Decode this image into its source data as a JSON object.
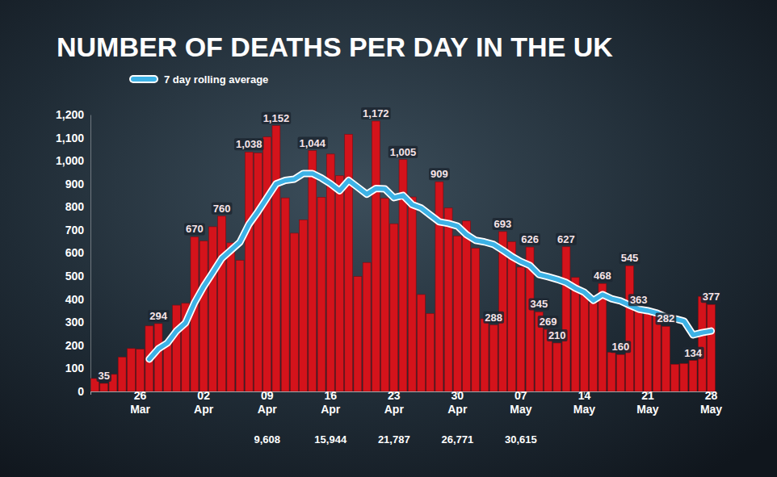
{
  "chart_data": {
    "type": "bar",
    "title": "NUMBER OF DEATHS PER DAY IN THE UK",
    "categories": [
      null,
      null,
      null,
      null,
      null,
      "26 Mar",
      null,
      null,
      null,
      null,
      null,
      null,
      "02 Apr",
      null,
      null,
      null,
      null,
      null,
      null,
      "09 Apr",
      null,
      null,
      null,
      null,
      null,
      null,
      "16 Apr",
      null,
      null,
      null,
      null,
      null,
      null,
      "23 Apr",
      null,
      null,
      null,
      null,
      null,
      null,
      "30 Apr",
      null,
      null,
      null,
      null,
      null,
      null,
      "07 May",
      null,
      null,
      null,
      null,
      null,
      null,
      "14 May",
      null,
      null,
      null,
      null,
      null,
      null,
      "21 May",
      null,
      null,
      null,
      null,
      null,
      null,
      "28 May"
    ],
    "series": [
      {
        "type": "bar",
        "color": "#d4131b",
        "data_labels": true,
        "values": [
          56,
          35,
          74,
          149,
          186,
          183,
          284,
          294,
          214,
          374,
          382,
          670,
          652,
          714,
          760,
          644,
          568,
          1038,
          1034,
          1103,
          1152,
          839,
          686,
          744,
          1044,
          842,
          1029,
          935,
          1115,
          498,
          559,
          1172,
          837,
          727,
          1005,
          843,
          420,
          338,
          909,
          795,
          674,
          739,
          621,
          315,
          288,
          693,
          649,
          539,
          626,
          345,
          269,
          210,
          627,
          494,
          428,
          384,
          468,
          170,
          160,
          545,
          363,
          338,
          351,
          282,
          118,
          121,
          134,
          412,
          377
        ],
        "value_labels": [
          null,
          "35",
          null,
          null,
          null,
          null,
          null,
          "294",
          null,
          null,
          null,
          "670",
          null,
          null,
          "760",
          null,
          null,
          "1,038",
          null,
          null,
          "1,152",
          null,
          null,
          null,
          "1,044",
          null,
          null,
          null,
          null,
          null,
          null,
          "1,172",
          null,
          null,
          "1,005",
          null,
          null,
          null,
          "909",
          null,
          null,
          null,
          null,
          null,
          "288",
          "693",
          null,
          null,
          "626",
          "345",
          "269",
          "210",
          "627",
          null,
          null,
          null,
          "468",
          null,
          "160",
          "545",
          "363",
          null,
          null,
          "282",
          null,
          null,
          "134",
          null,
          "377"
        ]
      },
      {
        "type": "line",
        "name": "7 day rolling average",
        "color": "#3db2e6",
        "values": [
          null,
          null,
          null,
          null,
          null,
          null,
          140,
          185,
          210,
          262,
          297,
          385,
          455,
          515,
          577,
          612,
          647,
          725,
          780,
          840,
          900,
          915,
          920,
          945,
          945,
          925,
          900,
          870,
          915,
          885,
          855,
          880,
          878,
          840,
          850,
          810,
          795,
          765,
          735,
          728,
          717,
          680,
          655,
          648,
          637,
          612,
          585,
          563,
          546,
          507,
          497,
          486,
          472,
          448,
          430,
          395,
          420,
          402,
          392,
          374,
          357,
          350,
          340,
          322,
          315,
          305,
          245,
          255,
          262
        ]
      }
    ],
    "ylim": [
      0,
      1200
    ],
    "yticks": [
      0,
      100,
      200,
      300,
      400,
      500,
      600,
      700,
      800,
      900,
      {
        "value": 1000,
        "label": "1,000"
      },
      {
        "value": 1100,
        "label": "1,100"
      },
      {
        "value": 1200,
        "label": "1,200"
      }
    ],
    "grid": false,
    "legend": "top-left",
    "totals": {
      "categories": [
        "09 Apr",
        "16 Apr",
        "23 Apr",
        "30 Apr",
        "07 May"
      ],
      "labels": [
        "9,608",
        "15,944",
        "21,787",
        "26,771",
        "30,615"
      ]
    }
  }
}
